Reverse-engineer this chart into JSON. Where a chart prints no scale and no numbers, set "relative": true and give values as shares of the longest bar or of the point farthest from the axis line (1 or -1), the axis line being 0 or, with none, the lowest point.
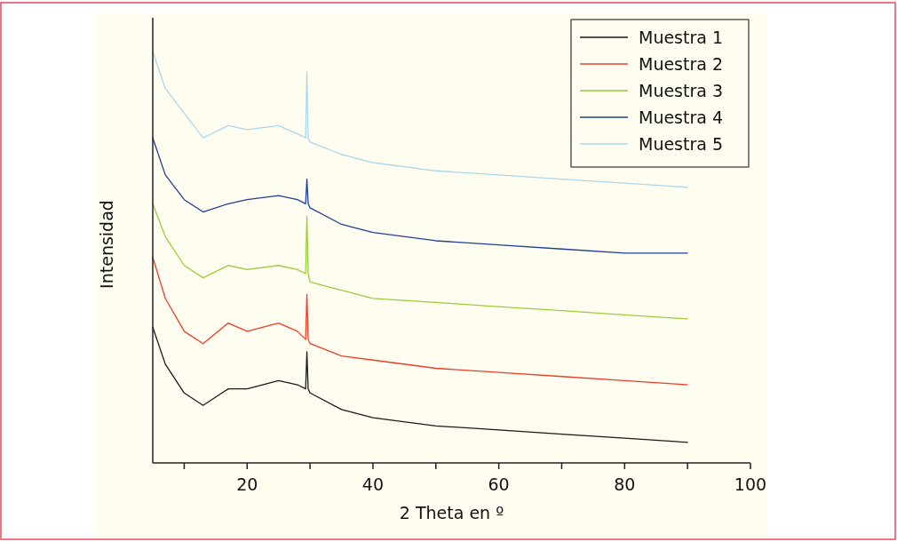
{
  "chart_data": {
    "type": "line",
    "relative": true,
    "xlabel": "2 Theta en º",
    "ylabel": "Intensidad",
    "xlim": [
      5,
      100
    ],
    "xticks": [
      {
        "value": 10,
        "label": null
      },
      20,
      {
        "value": 30,
        "label": null
      },
      40,
      {
        "value": 50,
        "label": null
      },
      60,
      {
        "value": 70,
        "label": null
      },
      80,
      {
        "value": 90,
        "label": null
      },
      100
    ],
    "legend": "top right",
    "grid": false,
    "line_style": "solid",
    "x": [
      5,
      7,
      10,
      13,
      17,
      20,
      25,
      28,
      29.3,
      29.5,
      29.7,
      30,
      35,
      40,
      50,
      60,
      70,
      80,
      90
    ],
    "series": [
      {
        "name": "Muestra 1",
        "color": "#1a1a1a",
        "values": [
          0.33,
          0.24,
          0.17,
          0.14,
          0.18,
          0.18,
          0.2,
          0.19,
          0.18,
          0.27,
          0.18,
          0.17,
          0.13,
          0.11,
          0.09,
          0.08,
          0.07,
          0.06,
          0.05
        ]
      },
      {
        "name": "Muestra 2",
        "color": "#e8402a",
        "values": [
          0.5,
          0.4,
          0.32,
          0.29,
          0.34,
          0.32,
          0.34,
          0.32,
          0.3,
          0.41,
          0.3,
          0.29,
          0.26,
          0.25,
          0.23,
          0.22,
          0.21,
          0.2,
          0.19
        ]
      },
      {
        "name": "Muestra 3",
        "color": "#9acd3c",
        "values": [
          0.63,
          0.55,
          0.48,
          0.45,
          0.48,
          0.47,
          0.48,
          0.47,
          0.46,
          0.6,
          0.46,
          0.44,
          0.42,
          0.4,
          0.39,
          0.38,
          0.37,
          0.36,
          0.35
        ]
      },
      {
        "name": "Muestra 4",
        "color": "#1f3f99",
        "values": [
          0.79,
          0.7,
          0.64,
          0.61,
          0.63,
          0.64,
          0.65,
          0.64,
          0.63,
          0.69,
          0.63,
          0.62,
          0.58,
          0.56,
          0.54,
          0.53,
          0.52,
          0.51,
          0.51
        ]
      },
      {
        "name": "Muestra 5",
        "color": "#a9d8ea",
        "values": [
          1,
          0.91,
          0.85,
          0.79,
          0.82,
          0.81,
          0.82,
          0.8,
          0.79,
          0.95,
          0.79,
          0.78,
          0.75,
          0.73,
          0.71,
          0.7,
          0.69,
          0.68,
          0.67
        ]
      }
    ]
  }
}
